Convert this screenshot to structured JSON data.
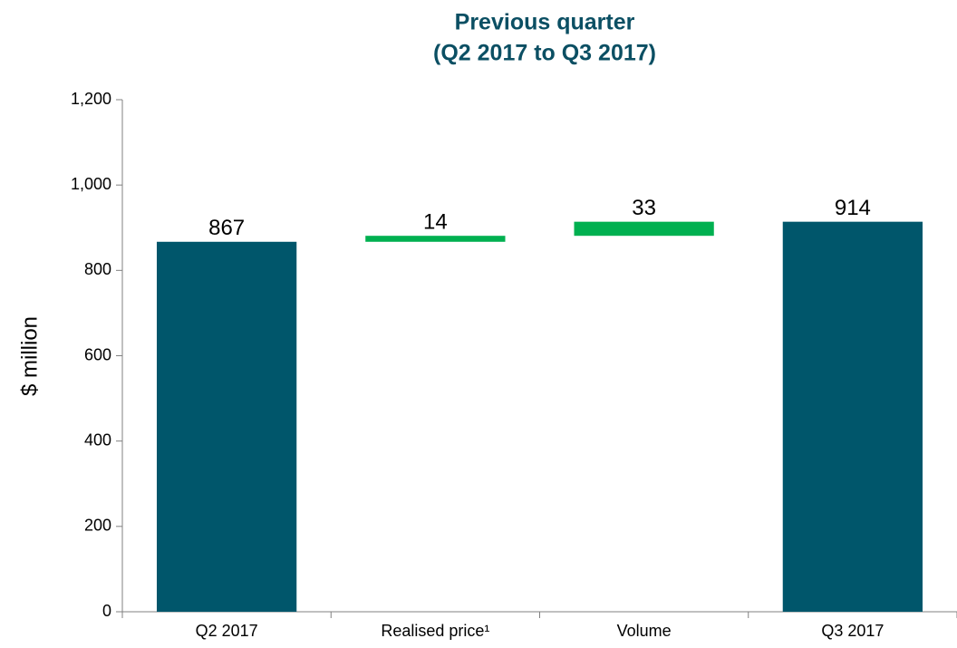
{
  "chart_data": {
    "type": "waterfall",
    "title": "Previous quarter",
    "subtitle": "(Q2 2017 to Q3 2017)",
    "y_label": "$ million",
    "categories": [
      "Q2 2017",
      "Realised price¹",
      "Volume",
      "Q3 2017"
    ],
    "values": [
      867,
      14,
      33,
      914
    ],
    "measure": [
      "total",
      "relative",
      "relative",
      "total"
    ],
    "total_color": "#00566b",
    "increase_color": "#00b050",
    "ylim": [
      0,
      1200
    ],
    "yticks": [
      0,
      200,
      400,
      600,
      800,
      {
        "value": 1000,
        "label": "1,000"
      },
      {
        "value": 1200,
        "label": "1,200"
      }
    ]
  }
}
